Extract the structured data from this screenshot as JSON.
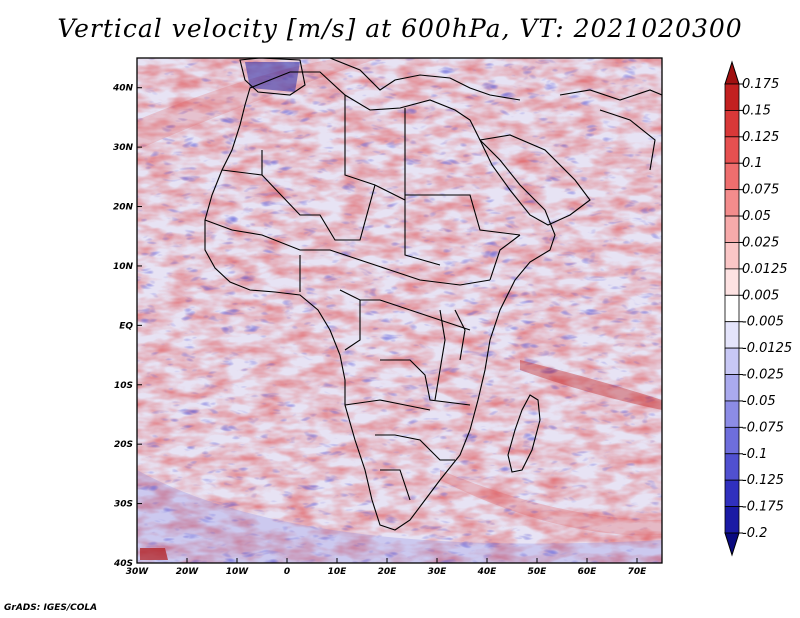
{
  "title": "Vertical velocity [m/s] at 600hPa, VT: 2021020300",
  "credit": "GrADS: IGES/COLA",
  "chart_data": {
    "type": "heatmap",
    "title": "Vertical velocity [m/s] at 600hPa, VT: 2021020300",
    "variable": "Vertical velocity",
    "units": "m/s",
    "level": "600hPa",
    "valid_time": "2021020300",
    "x_ticks": [
      "30W",
      "20W",
      "10W",
      "0",
      "10E",
      "20E",
      "30E",
      "40E",
      "50E",
      "60E",
      "70E"
    ],
    "x_values": [
      -30,
      -20,
      -10,
      0,
      10,
      20,
      30,
      40,
      50,
      60,
      70
    ],
    "y_ticks": [
      "40N",
      "30N",
      "20N",
      "10N",
      "EQ",
      "10S",
      "20S",
      "30S",
      "40S"
    ],
    "y_values": [
      40,
      30,
      20,
      10,
      0,
      -10,
      -20,
      -30,
      -40
    ],
    "lon_range": [
      -30,
      75
    ],
    "lat_range": [
      -40,
      45
    ],
    "colorbar": {
      "labels": [
        "0.175",
        "0.15",
        "0.125",
        "0.1",
        "0.075",
        "0.05",
        "0.025",
        "0.0125",
        "0.005",
        "-0.005",
        "-0.0125",
        "-0.025",
        "-0.05",
        "-0.075",
        "-0.1",
        "-0.125",
        "-0.175",
        "-0.2"
      ],
      "colors": [
        "#a01010",
        "#c22020",
        "#d83838",
        "#e65050",
        "#ee6e6e",
        "#f38c8c",
        "#f7aaaa",
        "#fac6c6",
        "#fde2e2",
        "#ffffff",
        "#e4e4fb",
        "#c8c8f5",
        "#aaaaee",
        "#8c8ce6",
        "#6e6edc",
        "#5050d0",
        "#3030be",
        "#1a1aa4",
        "#0a0a80"
      ]
    }
  }
}
